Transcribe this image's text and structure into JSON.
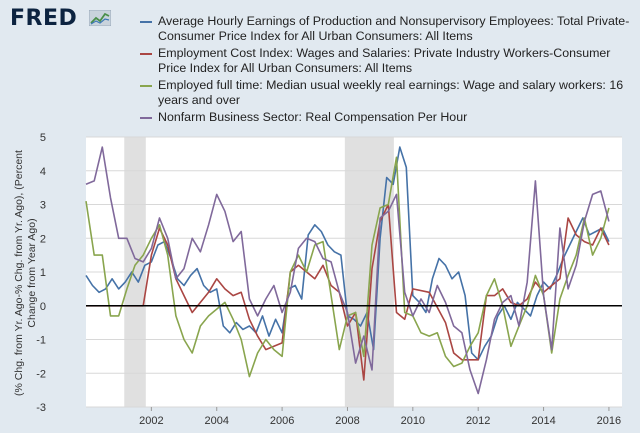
{
  "brand": {
    "logo_text": "FRED"
  },
  "chart_data": {
    "type": "line",
    "title": "",
    "xlabel": "",
    "ylabel": "(% Chg. from Yr. Ago-% Chg. from Yr. Ago), (Percent Change from Year Ago)",
    "xlim": [
      2000.0,
      2016.4
    ],
    "ylim": [
      -3,
      5
    ],
    "x_tick_labels": [
      "2002",
      "2004",
      "2006",
      "2008",
      "2010",
      "2012",
      "2014",
      "2016"
    ],
    "y_tick_labels": [
      "-3",
      "-2",
      "-1",
      "0",
      "1",
      "2",
      "3",
      "4",
      "5"
    ],
    "grid": true,
    "recessions": [
      [
        2001.17,
        2001.83
      ],
      [
        2007.92,
        2009.42
      ]
    ],
    "series": [
      {
        "name": "Average Hourly Earnings of Production and Nonsupervisory Employees: Total Private-Consumer Price Index for All Urban Consumers: All Items",
        "color": "#4572a7",
        "x": [
          2000.0,
          2000.2,
          2000.4,
          2000.6,
          2000.8,
          2001.0,
          2001.2,
          2001.4,
          2001.6,
          2001.8,
          2002.0,
          2002.2,
          2002.4,
          2002.6,
          2002.8,
          2003.0,
          2003.2,
          2003.4,
          2003.6,
          2003.8,
          2004.0,
          2004.2,
          2004.4,
          2004.6,
          2004.8,
          2005.0,
          2005.2,
          2005.4,
          2005.6,
          2005.8,
          2006.0,
          2006.2,
          2006.4,
          2006.6,
          2006.8,
          2007.0,
          2007.2,
          2007.4,
          2007.6,
          2007.8,
          2008.0,
          2008.2,
          2008.4,
          2008.6,
          2008.8,
          2009.0,
          2009.2,
          2009.4,
          2009.6,
          2009.8,
          2010.0,
          2010.2,
          2010.4,
          2010.6,
          2010.8,
          2011.0,
          2011.2,
          2011.4,
          2011.6,
          2011.8,
          2012.0,
          2012.2,
          2012.4,
          2012.6,
          2012.8,
          2013.0,
          2013.2,
          2013.4,
          2013.6,
          2013.8,
          2014.0,
          2014.2,
          2014.4,
          2014.6,
          2014.8,
          2015.0,
          2015.2,
          2015.4,
          2015.6,
          2015.8,
          2016.0
        ],
        "values": [
          0.9,
          0.6,
          0.4,
          0.5,
          0.8,
          0.5,
          0.7,
          1.0,
          0.7,
          1.2,
          1.3,
          1.8,
          1.9,
          1.4,
          0.8,
          0.6,
          0.9,
          1.1,
          0.6,
          0.4,
          0.5,
          -0.6,
          -0.8,
          -0.5,
          -0.7,
          -0.6,
          -0.8,
          -0.3,
          -0.9,
          -0.4,
          -0.8,
          0.5,
          0.6,
          0.2,
          2.1,
          2.4,
          2.2,
          1.8,
          1.6,
          1.5,
          -0.3,
          -0.4,
          -0.6,
          -0.2,
          -1.3,
          2.0,
          3.8,
          3.6,
          4.7,
          4.1,
          0.3,
          0.1,
          -0.2,
          0.8,
          1.4,
          1.2,
          0.8,
          1.0,
          0.3,
          -1.4,
          -1.6,
          -1.2,
          -0.9,
          -0.3,
          0.0,
          -0.4,
          0.1,
          -0.1,
          -0.3,
          0.3,
          0.7,
          0.5,
          0.9,
          1.4,
          1.8,
          2.2,
          2.6,
          2.1,
          2.2,
          2.3,
          1.9
        ]
      },
      {
        "name": "Employment Cost Index: Wages and Salaries: Private Industry Workers-Consumer Price Index for All Urban Consumers: All Items",
        "color": "#aa4643",
        "x": [
          2000.0,
          2000.5,
          2001.0,
          2001.5,
          2001.75,
          2002.0,
          2002.25,
          2002.5,
          2002.75,
          2003.0,
          2003.25,
          2003.5,
          2003.75,
          2004.0,
          2004.25,
          2004.5,
          2004.75,
          2005.0,
          2005.25,
          2005.5,
          2005.75,
          2006.0,
          2006.25,
          2006.5,
          2006.75,
          2007.0,
          2007.25,
          2007.5,
          2007.75,
          2008.0,
          2008.25,
          2008.5,
          2008.75,
          2009.0,
          2009.25,
          2009.5,
          2009.75,
          2010.0,
          2010.5,
          2011.0,
          2011.25,
          2011.5,
          2011.75,
          2012.0,
          2012.25,
          2012.5,
          2012.75,
          2013.0,
          2013.25,
          2013.5,
          2013.75,
          2014.0,
          2014.25,
          2014.5,
          2014.75,
          2015.0,
          2015.25,
          2015.5,
          2015.75,
          2016.0
        ],
        "values": [
          0.0,
          0.0,
          0.0,
          0.0,
          0.0,
          1.5,
          2.3,
          1.8,
          0.8,
          0.3,
          -0.2,
          0.1,
          0.4,
          0.8,
          0.5,
          0.3,
          0.4,
          -0.4,
          -0.9,
          -1.3,
          -1.2,
          -1.1,
          1.0,
          1.2,
          1.0,
          0.8,
          1.2,
          0.6,
          0.4,
          -0.6,
          -0.2,
          -2.2,
          1.1,
          2.5,
          3.0,
          -0.2,
          -0.4,
          0.5,
          0.4,
          -0.5,
          -1.4,
          -1.6,
          -1.6,
          -1.6,
          0.3,
          0.3,
          0.5,
          0.1,
          0.0,
          0.2,
          0.7,
          0.4,
          0.6,
          0.8,
          2.6,
          2.1,
          1.9,
          1.8,
          2.3,
          1.8
        ]
      },
      {
        "name": "Employed full time: Median usual weekly real earnings: Wage and salary workers: 16 years and over",
        "color": "#89a54e",
        "x": [
          2000.0,
          2000.25,
          2000.5,
          2000.75,
          2001.0,
          2001.25,
          2001.5,
          2001.75,
          2002.0,
          2002.25,
          2002.5,
          2002.75,
          2003.0,
          2003.25,
          2003.5,
          2003.75,
          2004.0,
          2004.25,
          2004.5,
          2004.75,
          2005.0,
          2005.25,
          2005.5,
          2005.75,
          2006.0,
          2006.25,
          2006.5,
          2006.75,
          2007.0,
          2007.25,
          2007.5,
          2007.75,
          2008.0,
          2008.25,
          2008.5,
          2008.75,
          2009.0,
          2009.25,
          2009.5,
          2009.75,
          2010.0,
          2010.25,
          2010.5,
          2010.75,
          2011.0,
          2011.25,
          2011.5,
          2011.75,
          2012.0,
          2012.25,
          2012.5,
          2012.75,
          2013.0,
          2013.25,
          2013.5,
          2013.75,
          2014.0,
          2014.25,
          2014.5,
          2014.75,
          2015.0,
          2015.25,
          2015.5,
          2015.75,
          2016.0
        ],
        "values": [
          3.1,
          1.5,
          1.5,
          -0.3,
          -0.3,
          0.5,
          1.2,
          1.5,
          2.0,
          2.4,
          1.5,
          -0.3,
          -1.0,
          -1.4,
          -0.6,
          -0.3,
          -0.1,
          0.1,
          -0.4,
          -1.0,
          -2.1,
          -1.4,
          -1.0,
          -1.3,
          -1.5,
          1.0,
          1.5,
          1.0,
          1.8,
          1.9,
          0.3,
          -1.3,
          -0.3,
          -0.2,
          -1.5,
          1.8,
          2.9,
          3.0,
          4.4,
          -0.2,
          -0.3,
          -0.8,
          -0.9,
          -0.8,
          -1.5,
          -1.8,
          -1.7,
          -1.2,
          -0.8,
          0.3,
          0.8,
          0.0,
          -1.2,
          -0.6,
          0.0,
          0.9,
          0.3,
          -1.4,
          0.2,
          0.9,
          1.5,
          2.6,
          1.5,
          2.0,
          2.9
        ]
      },
      {
        "name": "Nonfarm Business Sector: Real Compensation Per Hour",
        "color": "#80699b",
        "x": [
          2000.0,
          2000.25,
          2000.5,
          2000.75,
          2001.0,
          2001.25,
          2001.5,
          2001.75,
          2002.0,
          2002.25,
          2002.5,
          2002.75,
          2003.0,
          2003.25,
          2003.5,
          2003.75,
          2004.0,
          2004.25,
          2004.5,
          2004.75,
          2005.0,
          2005.25,
          2005.5,
          2005.75,
          2006.0,
          2006.25,
          2006.5,
          2006.75,
          2007.0,
          2007.25,
          2007.5,
          2007.75,
          2008.0,
          2008.25,
          2008.5,
          2008.75,
          2009.0,
          2009.25,
          2009.5,
          2009.75,
          2010.0,
          2010.25,
          2010.5,
          2010.75,
          2011.0,
          2011.25,
          2011.5,
          2011.75,
          2012.0,
          2012.25,
          2012.5,
          2012.75,
          2013.0,
          2013.25,
          2013.5,
          2013.75,
          2014.0,
          2014.25,
          2014.5,
          2014.75,
          2015.0,
          2015.25,
          2015.5,
          2015.75,
          2016.0
        ],
        "values": [
          3.6,
          3.7,
          4.7,
          3.2,
          2.0,
          2.0,
          1.4,
          1.3,
          1.7,
          2.6,
          2.0,
          0.8,
          1.1,
          2.0,
          1.6,
          2.4,
          3.3,
          2.8,
          1.9,
          2.2,
          0.2,
          -0.3,
          0.2,
          0.6,
          -0.2,
          0.4,
          1.7,
          2.0,
          1.9,
          1.4,
          1.3,
          0.4,
          -0.2,
          -1.7,
          -0.9,
          -1.9,
          2.6,
          2.8,
          3.3,
          0.4,
          -0.3,
          0.2,
          -0.2,
          0.6,
          0.1,
          -0.6,
          -0.8,
          -1.9,
          -2.6,
          -1.6,
          -0.4,
          0.1,
          0.3,
          -0.6,
          0.7,
          3.7,
          0.3,
          -1.3,
          2.3,
          0.5,
          1.2,
          2.5,
          3.3,
          3.4,
          2.5
        ]
      }
    ]
  }
}
